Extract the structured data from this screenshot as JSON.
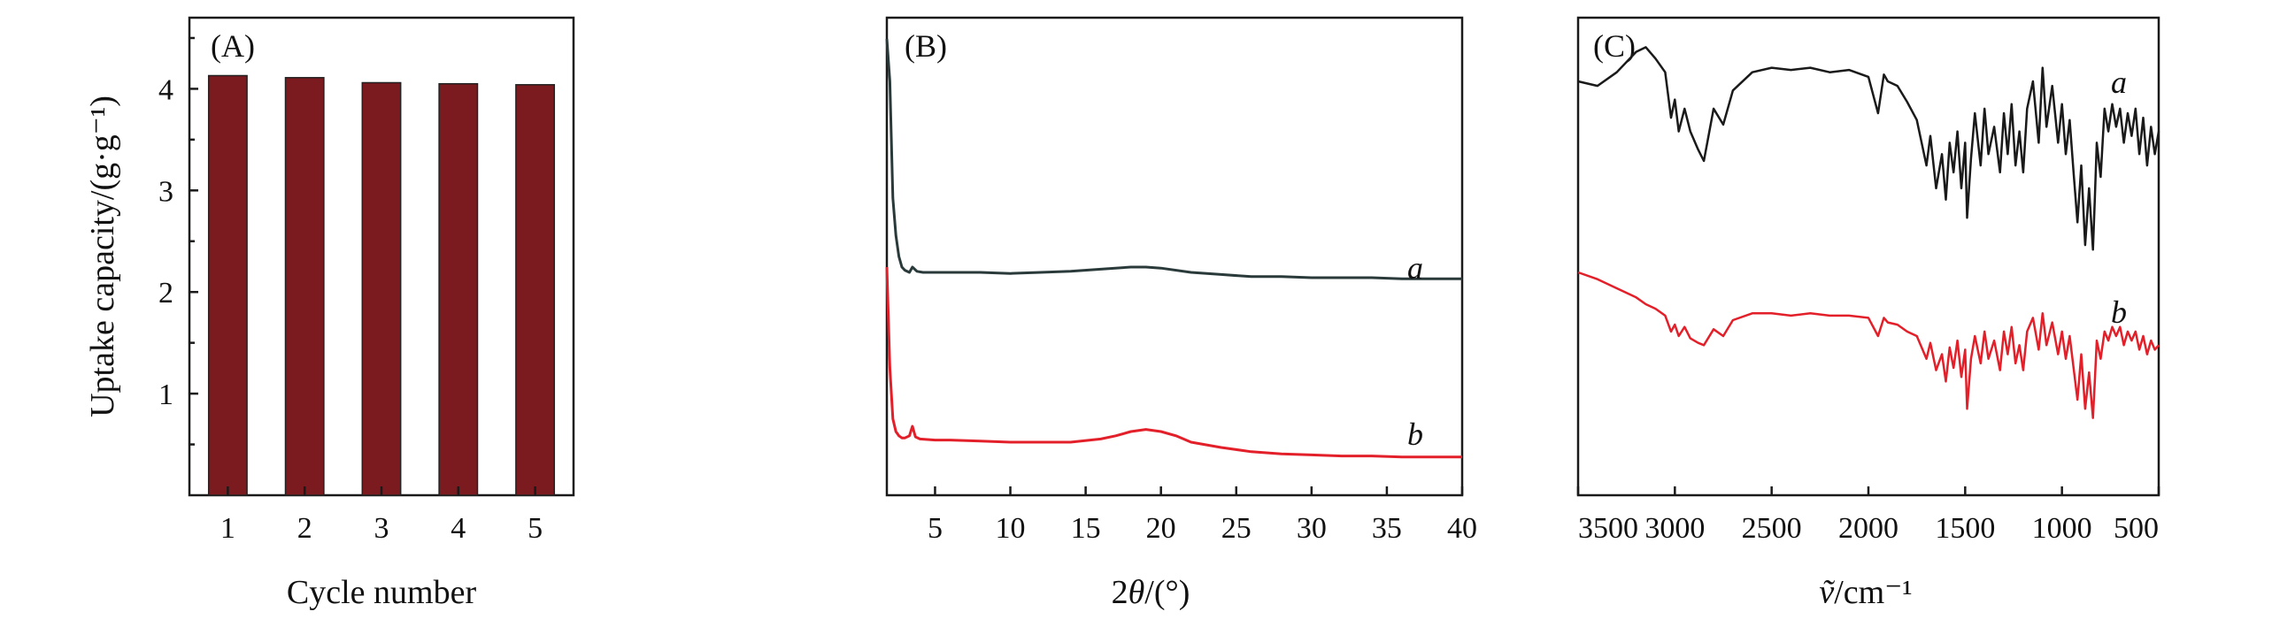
{
  "chart_data": [
    {
      "panel": "A",
      "type": "bar",
      "panel_label": "(A)",
      "xlabel": "Cycle number",
      "ylabel": "Uptake capacity/(g·g⁻¹)",
      "categories": [
        "1",
        "2",
        "3",
        "4",
        "5"
      ],
      "values": [
        4.13,
        4.11,
        4.06,
        4.05,
        4.04
      ],
      "ylim": [
        0,
        4.7
      ],
      "yticks": [
        1,
        2,
        3,
        4
      ],
      "bar_color": "#7c1b1f",
      "grid": false
    },
    {
      "panel": "B",
      "type": "line",
      "panel_label": "(B)",
      "xlabel": "2θ/(°)",
      "xlim": [
        1.8,
        40
      ],
      "xticks": [
        5,
        10,
        15,
        20,
        25,
        30,
        35,
        40
      ],
      "y_axis_values": false,
      "grid": false,
      "series": [
        {
          "name": "a",
          "color": "#2a3a3a",
          "x": [
            1.8,
            2.0,
            2.2,
            2.4,
            2.6,
            2.8,
            3.0,
            3.3,
            3.5,
            3.8,
            4.2,
            5,
            6,
            8,
            10,
            12,
            14,
            16,
            18,
            19,
            20,
            22,
            24,
            26,
            28,
            30,
            32,
            34,
            36,
            38,
            40
          ],
          "y": [
            4.3,
            3.9,
            2.8,
            2.45,
            2.25,
            2.15,
            2.12,
            2.1,
            2.15,
            2.11,
            2.1,
            2.1,
            2.1,
            2.1,
            2.09,
            2.1,
            2.11,
            2.13,
            2.15,
            2.15,
            2.14,
            2.1,
            2.08,
            2.06,
            2.06,
            2.05,
            2.05,
            2.05,
            2.04,
            2.04,
            2.04
          ]
        },
        {
          "name": "b",
          "color": "#e3202a",
          "x": [
            1.8,
            2.0,
            2.2,
            2.4,
            2.6,
            2.8,
            3.0,
            3.3,
            3.5,
            3.7,
            4.0,
            5,
            6,
            8,
            10,
            12,
            14,
            16,
            17,
            18,
            19,
            20,
            21,
            22,
            24,
            26,
            28,
            30,
            32,
            34,
            36,
            38,
            40
          ],
          "y": [
            2.15,
            1.2,
            0.72,
            0.6,
            0.56,
            0.54,
            0.54,
            0.56,
            0.65,
            0.55,
            0.53,
            0.52,
            0.52,
            0.51,
            0.5,
            0.5,
            0.5,
            0.53,
            0.56,
            0.6,
            0.62,
            0.6,
            0.56,
            0.5,
            0.45,
            0.41,
            0.39,
            0.38,
            0.37,
            0.37,
            0.36,
            0.36,
            0.36
          ]
        }
      ],
      "annotations": [
        "a",
        "b"
      ]
    },
    {
      "panel": "C",
      "type": "line",
      "panel_label": "(C)",
      "xlabel": "ṽ/cm⁻¹",
      "xlim": [
        3500,
        500
      ],
      "xticks": [
        3500,
        3000,
        2500,
        2000,
        1500,
        1000,
        500
      ],
      "y_axis_values": false,
      "grid": false,
      "series": [
        {
          "name": "a",
          "color": "#1a1a1a",
          "x": [
            3500,
            3400,
            3300,
            3200,
            3150,
            3100,
            3050,
            3020,
            3000,
            2980,
            2950,
            2920,
            2880,
            2850,
            2800,
            2750,
            2700,
            2600,
            2500,
            2400,
            2300,
            2200,
            2100,
            2000,
            1950,
            1920,
            1900,
            1850,
            1800,
            1750,
            1700,
            1680,
            1650,
            1620,
            1600,
            1580,
            1560,
            1540,
            1520,
            1500,
            1490,
            1470,
            1450,
            1420,
            1400,
            1380,
            1350,
            1320,
            1300,
            1280,
            1260,
            1240,
            1220,
            1200,
            1180,
            1150,
            1120,
            1100,
            1080,
            1050,
            1020,
            1000,
            980,
            960,
            940,
            920,
            900,
            880,
            860,
            840,
            830,
            820,
            800,
            780,
            760,
            740,
            720,
            700,
            680,
            660,
            640,
            620,
            600,
            580,
            560,
            540,
            520,
            500
          ],
          "y": [
            0.82,
            0.8,
            0.86,
            0.95,
            0.97,
            0.92,
            0.86,
            0.66,
            0.74,
            0.6,
            0.7,
            0.6,
            0.52,
            0.47,
            0.7,
            0.63,
            0.78,
            0.86,
            0.88,
            0.87,
            0.88,
            0.86,
            0.87,
            0.84,
            0.68,
            0.85,
            0.82,
            0.8,
            0.73,
            0.65,
            0.45,
            0.58,
            0.35,
            0.5,
            0.3,
            0.55,
            0.42,
            0.6,
            0.35,
            0.55,
            0.22,
            0.48,
            0.68,
            0.45,
            0.7,
            0.5,
            0.62,
            0.42,
            0.68,
            0.5,
            0.72,
            0.45,
            0.6,
            0.42,
            0.7,
            0.82,
            0.55,
            0.88,
            0.62,
            0.8,
            0.55,
            0.72,
            0.5,
            0.65,
            0.42,
            0.2,
            0.45,
            0.1,
            0.35,
            0.08,
            0.3,
            0.55,
            0.4,
            0.7,
            0.6,
            0.72,
            0.62,
            0.7,
            0.55,
            0.68,
            0.58,
            0.7,
            0.5,
            0.66,
            0.45,
            0.62,
            0.5,
            0.6
          ],
          "label": "a"
        },
        {
          "name": "b",
          "color": "#e3202a",
          "x": [
            3500,
            3400,
            3300,
            3200,
            3150,
            3100,
            3050,
            3020,
            3000,
            2980,
            2950,
            2920,
            2880,
            2850,
            2800,
            2750,
            2700,
            2600,
            2500,
            2400,
            2300,
            2200,
            2100,
            2000,
            1950,
            1920,
            1900,
            1850,
            1800,
            1750,
            1700,
            1680,
            1650,
            1620,
            1600,
            1580,
            1560,
            1540,
            1520,
            1500,
            1490,
            1470,
            1450,
            1420,
            1400,
            1380,
            1350,
            1320,
            1300,
            1280,
            1260,
            1240,
            1220,
            1200,
            1180,
            1150,
            1120,
            1100,
            1080,
            1050,
            1020,
            1000,
            980,
            960,
            940,
            920,
            900,
            880,
            860,
            840,
            830,
            820,
            800,
            780,
            760,
            740,
            720,
            700,
            680,
            660,
            640,
            620,
            600,
            580,
            560,
            540,
            520,
            500
          ],
          "y": [
            -0.02,
            -0.05,
            -0.09,
            -0.13,
            -0.16,
            -0.18,
            -0.21,
            -0.28,
            -0.25,
            -0.3,
            -0.26,
            -0.31,
            -0.33,
            -0.34,
            -0.27,
            -0.3,
            -0.23,
            -0.2,
            -0.2,
            -0.21,
            -0.2,
            -0.21,
            -0.21,
            -0.22,
            -0.3,
            -0.22,
            -0.24,
            -0.25,
            -0.28,
            -0.3,
            -0.4,
            -0.33,
            -0.45,
            -0.38,
            -0.5,
            -0.35,
            -0.44,
            -0.32,
            -0.48,
            -0.36,
            -0.62,
            -0.4,
            -0.3,
            -0.42,
            -0.28,
            -0.4,
            -0.32,
            -0.45,
            -0.28,
            -0.38,
            -0.26,
            -0.42,
            -0.34,
            -0.45,
            -0.28,
            -0.22,
            -0.36,
            -0.2,
            -0.34,
            -0.24,
            -0.38,
            -0.28,
            -0.4,
            -0.3,
            -0.44,
            -0.58,
            -0.38,
            -0.62,
            -0.46,
            -0.66,
            -0.5,
            -0.32,
            -0.4,
            -0.28,
            -0.32,
            -0.26,
            -0.3,
            -0.26,
            -0.34,
            -0.28,
            -0.32,
            -0.28,
            -0.36,
            -0.3,
            -0.38,
            -0.32,
            -0.36,
            -0.34
          ],
          "label": "b"
        }
      ],
      "annotations": [
        "a",
        "b"
      ]
    }
  ]
}
